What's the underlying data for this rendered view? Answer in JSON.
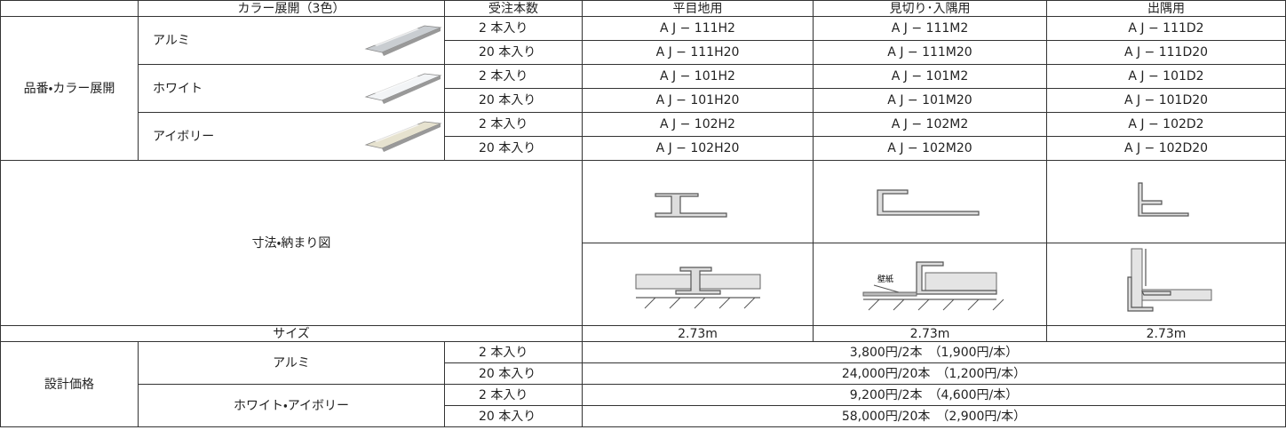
{
  "table": {
    "header": [
      "カラー展開（3色）",
      "受注本数",
      "平目地用",
      "見切り･入隅用",
      "出隅用"
    ],
    "section_label": "品番・カラー展開",
    "colors": [
      {
        "name": "アルミ",
        "rows": [
          {
            "qty": "2 本入り",
            "codes": [
              "A J − 111H2",
              "A J − 111M2",
              "A J − 111D2"
            ]
          },
          {
            "qty": "20 本入り",
            "codes": [
              "A J − 111H20",
              "A J − 111M20",
              "A J − 111D20"
            ]
          }
        ]
      },
      {
        "name": "ホワイト",
        "rows": [
          {
            "qty": "2 本入り",
            "codes": [
              "A J − 101H2",
              "A J − 101M2",
              "A J − 101D2"
            ]
          },
          {
            "qty": "20 本入り",
            "codes": [
              "A J − 101H20",
              "A J − 101M20",
              "A J − 101D20"
            ]
          }
        ]
      },
      {
        "name": "アイボリー",
        "rows": [
          {
            "qty": "2 本入り",
            "codes": [
              "A J − 102H2",
              "A J − 102M2",
              "A J − 102D2"
            ]
          },
          {
            "qty": "20 本入り",
            "codes": [
              "A J − 102H20",
              "A J − 102M20",
              "A J − 102D20"
            ]
          }
        ]
      }
    ],
    "diagram_label": "寸法・納まり図",
    "wall_label": "壁紙",
    "size_label": "サイズ",
    "sizes": [
      "2.73m",
      "2.73m",
      "2.73m"
    ],
    "price_label": "設計価格",
    "prices": [
      {
        "name": "アルミ",
        "rows": [
          {
            "qty": "2 本入り",
            "price": "3,800円/2本　（1,900円/本）"
          },
          {
            "qty": "20 本入り",
            "price": "24,000円/20本　（1,200円/本）"
          }
        ]
      },
      {
        "name": "ホワイト・アイボリー",
        "rows": [
          {
            "qty": "2 本入り",
            "price": "9,200円/2本　（4,600円/本）"
          },
          {
            "qty": "20 本入り",
            "price": "58,000円/20本　（2,900円/本）"
          }
        ]
      }
    ]
  }
}
